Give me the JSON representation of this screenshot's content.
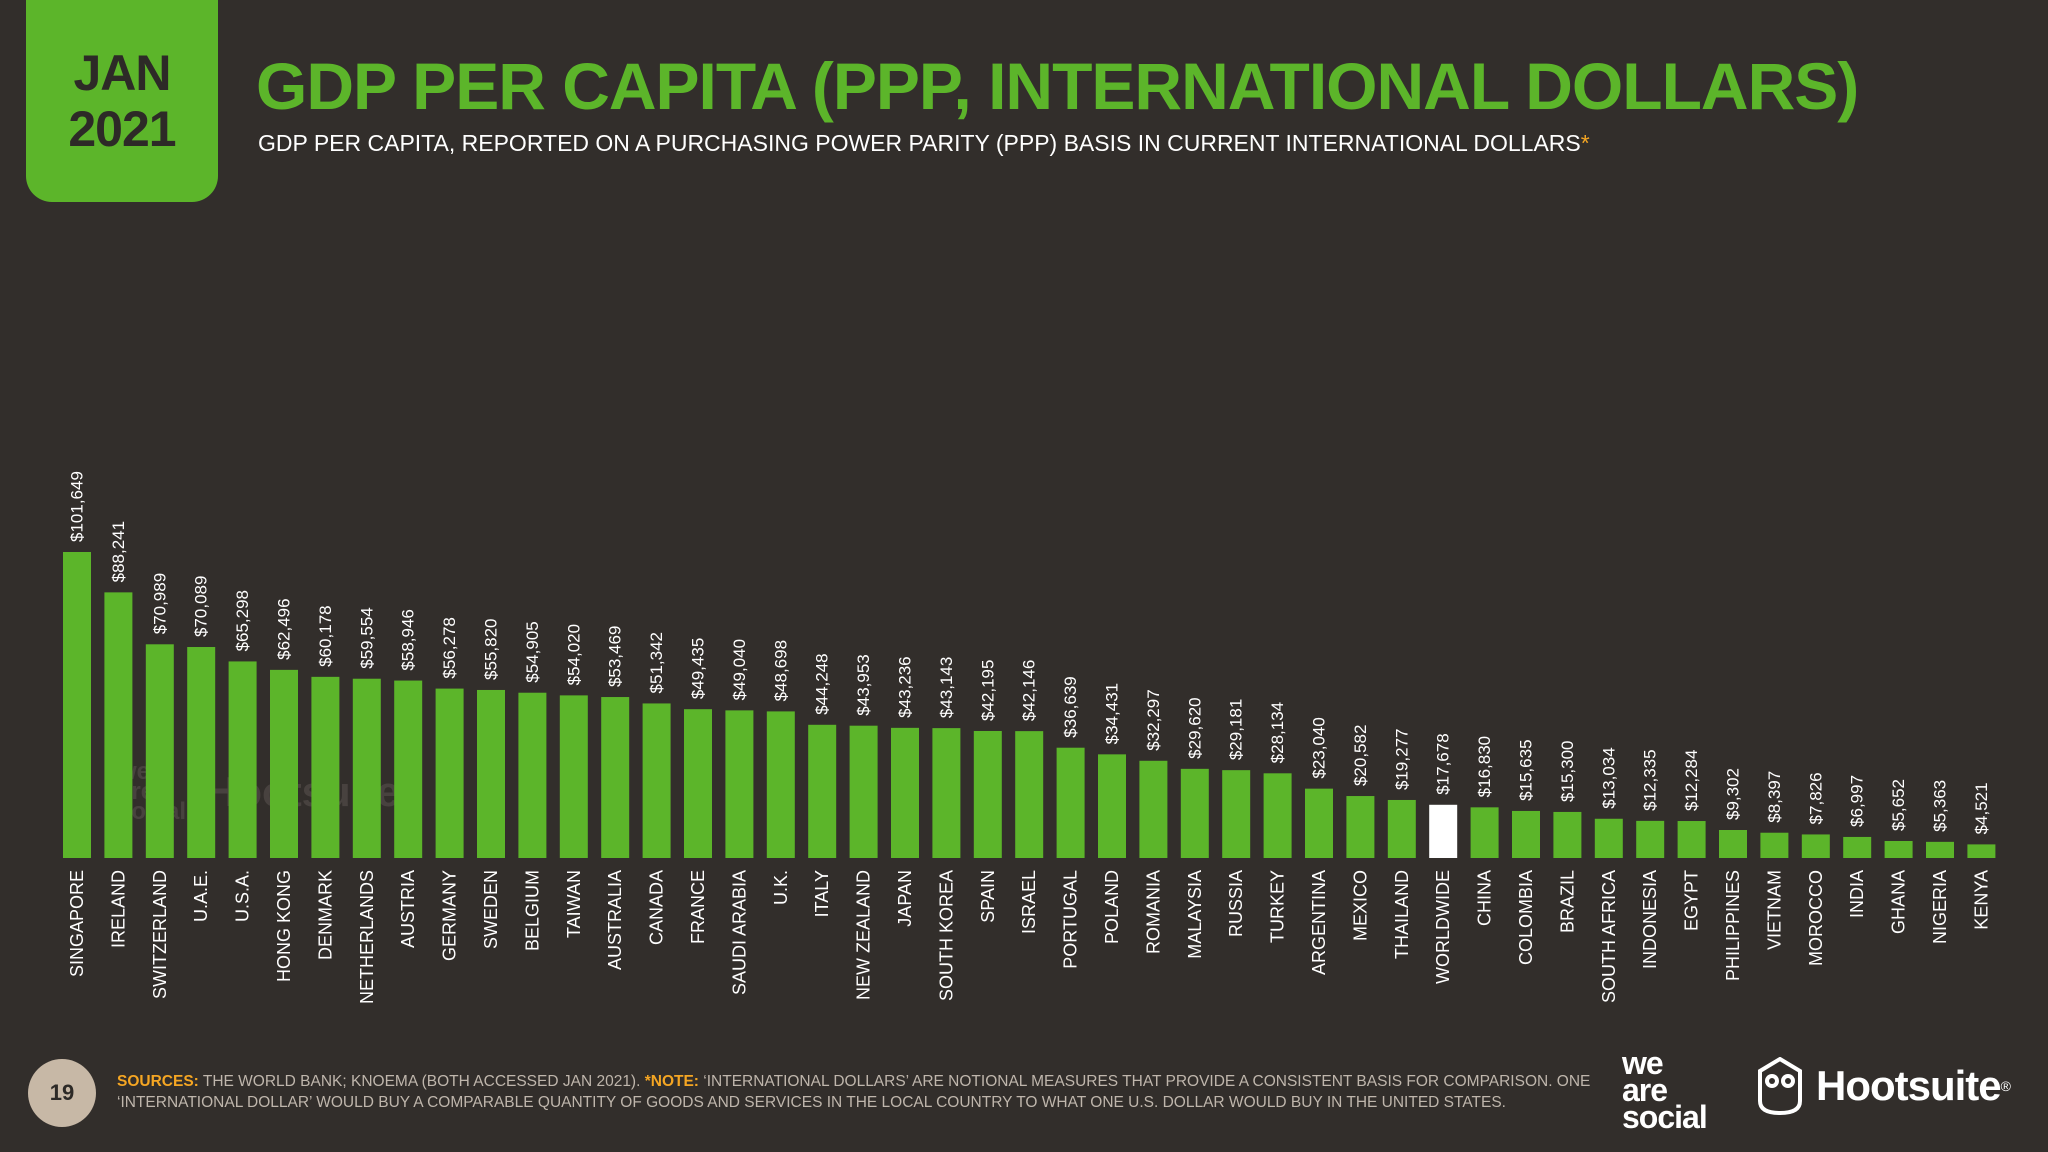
{
  "badge": {
    "month": "JAN",
    "year": "2021"
  },
  "header": {
    "title": "GDP PER CAPITA (PPP, INTERNATIONAL DOLLARS)",
    "subtitle": "GDP PER CAPITA, REPORTED ON A PURCHASING POWER PARITY (PPP) BASIS IN CURRENT INTERNATIONAL DOLLARS",
    "subtitle_mark": "*"
  },
  "footer": {
    "page_number": "19",
    "sources_label": "SOURCES:",
    "sources_text": "THE WORLD BANK; KNOEMA (BOTH ACCESSED JAN 2021).",
    "note_label": "*NOTE:",
    "note_text": "‘INTERNATIONAL DOLLARS’ ARE NOTIONAL MEASURES THAT PROVIDE A CONSISTENT BASIS FOR COMPARISON. ONE ‘INTERNATIONAL DOLLAR’ WOULD BUY A COMPARABLE QUANTITY OF GOODS AND SERVICES IN THE LOCAL COUNTRY TO WHAT ONE U.S. DOLLAR WOULD BUY IN THE UNITED STATES."
  },
  "logos": {
    "wearesocial": [
      "we",
      "are",
      "social"
    ],
    "hootsuite": "Hootsuite",
    "registered_mark": "®"
  },
  "colors": {
    "background": "#322e2b",
    "bar": "#5cb52a",
    "highlight_bar": "#ffffff",
    "label_text": "#ffffff",
    "accent": "#f5a623"
  },
  "chart_data": {
    "type": "bar",
    "highlight": "WORLDWIDE",
    "ylim": [
      0,
      101649
    ],
    "grid": false,
    "categories": [
      "SINGAPORE",
      "IRELAND",
      "SWITZERLAND",
      "U.A.E.",
      "U.S.A.",
      "HONG KONG",
      "DENMARK",
      "NETHERLANDS",
      "AUSTRIA",
      "GERMANY",
      "SWEDEN",
      "BELGIUM",
      "TAIWAN",
      "AUSTRALIA",
      "CANADA",
      "FRANCE",
      "SAUDI ARABIA",
      "U.K.",
      "ITALY",
      "NEW ZEALAND",
      "JAPAN",
      "SOUTH KOREA",
      "SPAIN",
      "ISRAEL",
      "PORTUGAL",
      "POLAND",
      "ROMANIA",
      "MALAYSIA",
      "RUSSIA",
      "TURKEY",
      "ARGENTINA",
      "MEXICO",
      "THAILAND",
      "WORLDWIDE",
      "CHINA",
      "COLOMBIA",
      "BRAZIL",
      "SOUTH AFRICA",
      "INDONESIA",
      "EGYPT",
      "PHILIPPINES",
      "VIETNAM",
      "MOROCCO",
      "INDIA",
      "GHANA",
      "NIGERIA",
      "KENYA"
    ],
    "values": [
      101649,
      88241,
      70989,
      70089,
      65298,
      62496,
      60178,
      59554,
      58946,
      56278,
      55820,
      54905,
      54020,
      53469,
      51342,
      49435,
      49040,
      48698,
      44248,
      43953,
      43236,
      43143,
      42195,
      42146,
      36639,
      34431,
      32297,
      29620,
      29181,
      28134,
      23040,
      20582,
      19277,
      17678,
      16830,
      15635,
      15300,
      13034,
      12335,
      12284,
      9302,
      8397,
      7826,
      6997,
      5652,
      5363,
      4521
    ],
    "value_labels": [
      "$101,649",
      "$88,241",
      "$70,989",
      "$70,089",
      "$65,298",
      "$62,496",
      "$60,178",
      "$59,554",
      "$58,946",
      "$56,278",
      "$55,820",
      "$54,905",
      "$54,020",
      "$53,469",
      "$51,342",
      "$49,435",
      "$49,040",
      "$48,698",
      "$44,248",
      "$43,953",
      "$43,236",
      "$43,143",
      "$42,195",
      "$42,146",
      "$36,639",
      "$34,431",
      "$32,297",
      "$29,620",
      "$29,181",
      "$28,134",
      "$23,040",
      "$20,582",
      "$19,277",
      "$17,678",
      "$16,830",
      "$15,635",
      "$15,300",
      "$13,034",
      "$12,335",
      "$12,284",
      "$9,302",
      "$8,397",
      "$7,826",
      "$6,997",
      "$5,652",
      "$5,363",
      "$4,521"
    ]
  }
}
